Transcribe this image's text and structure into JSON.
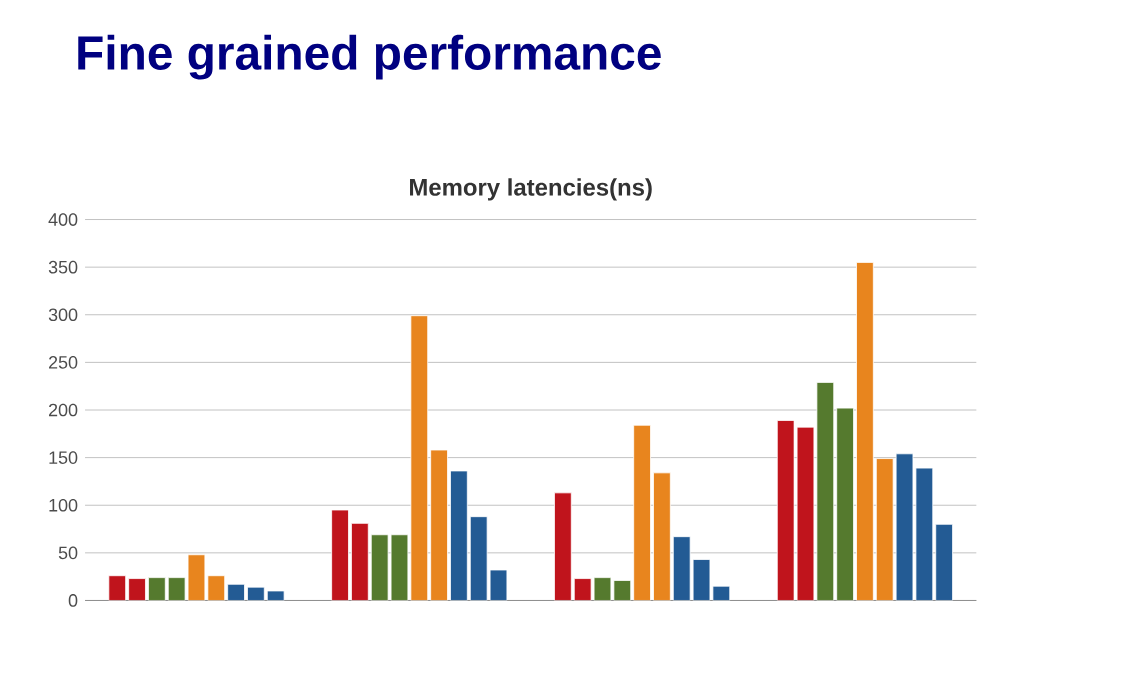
{
  "chart_data": {
    "type": "bar",
    "title": "Fine grained performance",
    "subtitle": "Memory latencies(ns)",
    "categories": [
      null,
      null,
      null,
      null
    ],
    "series": [
      {
        "color": "#c0141c",
        "values": [
          26,
          95,
          113,
          189
        ]
      },
      {
        "color": "#c0141c",
        "values": [
          23,
          81,
          23,
          182
        ]
      },
      {
        "color": "#557a2e",
        "values": [
          24,
          69,
          24,
          229
        ]
      },
      {
        "color": "#557a2e",
        "values": [
          24,
          69,
          21,
          202
        ]
      },
      {
        "color": "#e8851e",
        "values": [
          48,
          299,
          184,
          355
        ]
      },
      {
        "color": "#e8851e",
        "values": [
          26,
          158,
          134,
          149
        ]
      },
      {
        "color": "#235b94",
        "values": [
          17,
          136,
          67,
          154
        ]
      },
      {
        "color": "#235b94",
        "values": [
          14,
          88,
          43,
          139
        ]
      },
      {
        "color": "#235b94",
        "values": [
          10,
          32,
          15,
          80
        ]
      }
    ],
    "ylim": [
      0,
      400
    ],
    "yticks": [
      0,
      50,
      100,
      150,
      200,
      250,
      300,
      350,
      400
    ],
    "grid": "y"
  }
}
